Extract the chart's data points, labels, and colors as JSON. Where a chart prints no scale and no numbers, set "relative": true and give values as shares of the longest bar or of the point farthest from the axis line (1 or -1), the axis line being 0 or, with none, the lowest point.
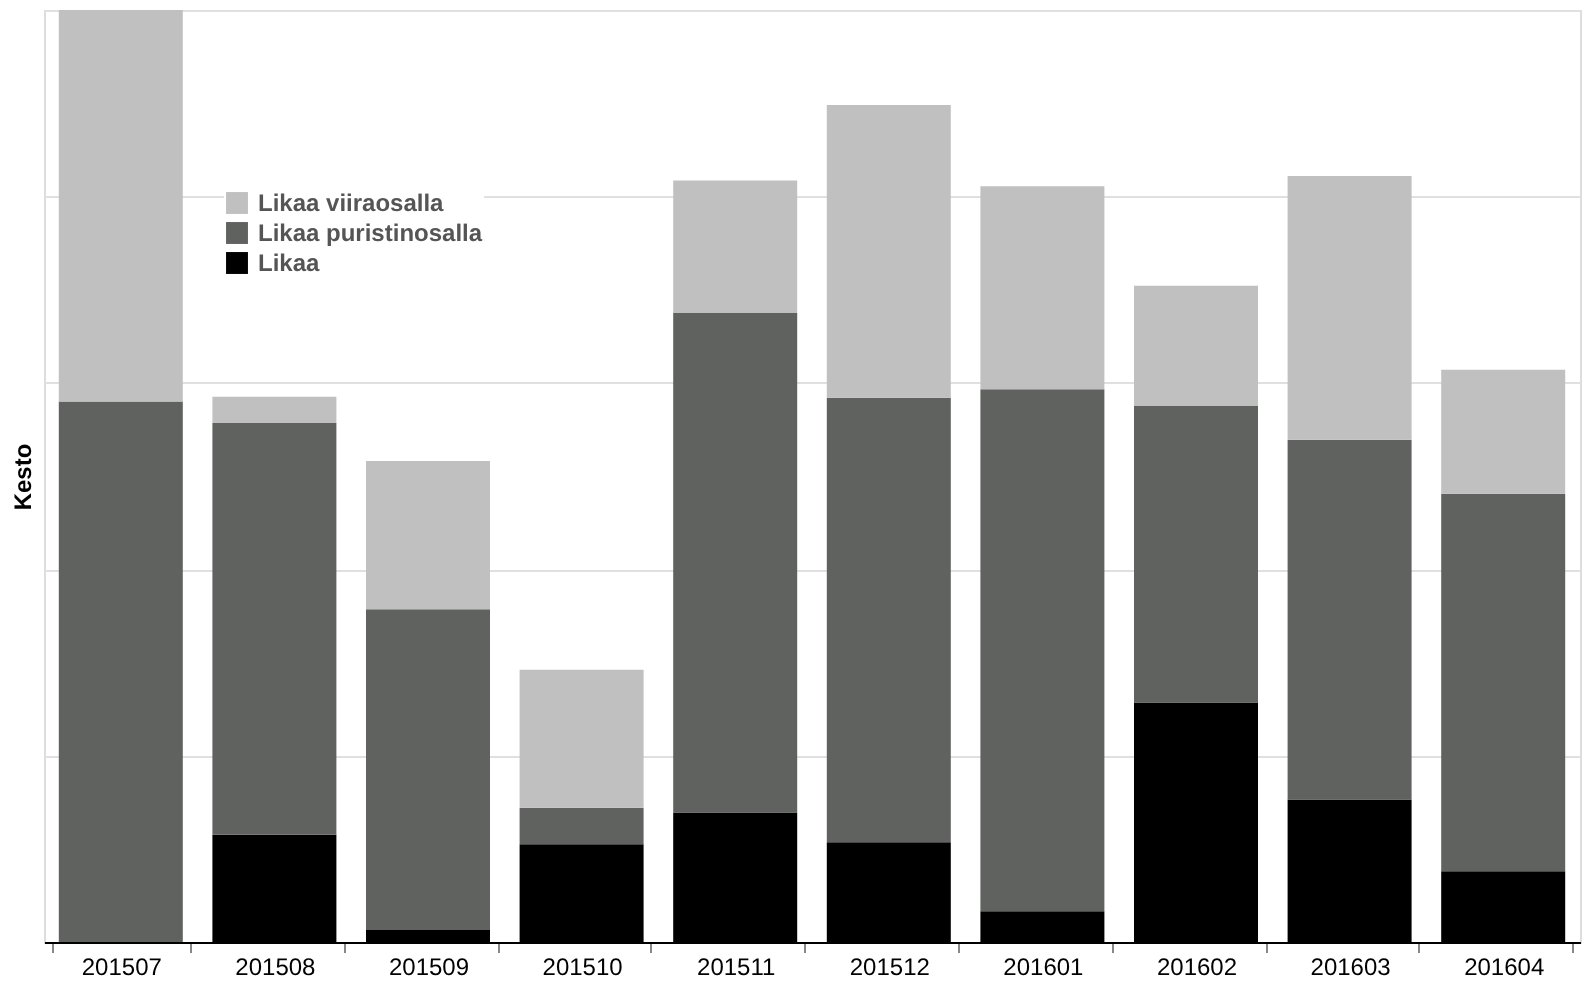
{
  "chart_data": {
    "type": "bar",
    "stacked": true,
    "relative": true,
    "ylabel": "Kesto",
    "categories": [
      "201507",
      "201508",
      "201509",
      "201510",
      "201511",
      "201512",
      "201601",
      "201602",
      "201603",
      "201604"
    ],
    "series": [
      {
        "name": "Likaa",
        "color": "#000000",
        "values": [
          0,
          0.115,
          0.013,
          0.105,
          0.139,
          0.107,
          0.033,
          0.257,
          0.153,
          0.076
        ]
      },
      {
        "name": "Likaa puristinosalla",
        "color": "#606260",
        "values": [
          0.58,
          0.442,
          0.344,
          0.039,
          0.536,
          0.477,
          0.56,
          0.318,
          0.386,
          0.405
        ]
      },
      {
        "name": "Likaa viiraosalla",
        "color": "#c0c0c0",
        "values": [
          0.42,
          0.028,
          0.159,
          0.148,
          0.142,
          0.314,
          0.218,
          0.129,
          0.283,
          0.133
        ]
      }
    ],
    "grid": "y",
    "legend": "top left"
  }
}
